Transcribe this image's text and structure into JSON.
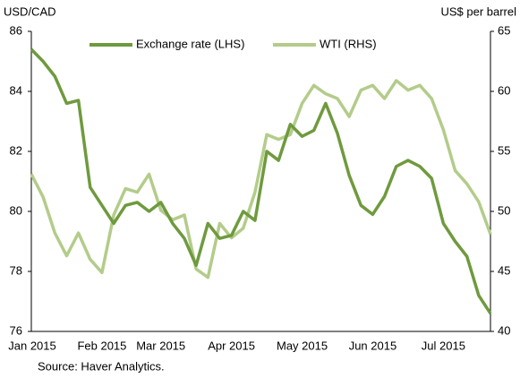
{
  "chart_data": {
    "type": "line",
    "y_label": "USD/CAD",
    "y2_label": "US$ per barrel",
    "source": "Source: Haver Analytics.",
    "categories": [
      "Jan 2015",
      null,
      null,
      null,
      null,
      null,
      "Feb 2015",
      null,
      null,
      null,
      null,
      "Mar 2015",
      null,
      null,
      null,
      null,
      null,
      "Apr 2015",
      null,
      null,
      null,
      null,
      null,
      "May 2015",
      null,
      null,
      null,
      null,
      null,
      "Jun 2015",
      null,
      null,
      null,
      null,
      null,
      "Jul 2015",
      null,
      null,
      null,
      null
    ],
    "series": [
      {
        "name": "Exchange rate (LHS)",
        "color": "#6f9a3e",
        "axis": "y",
        "values": [
          85.4,
          85.0,
          84.5,
          83.6,
          83.7,
          80.8,
          80.2,
          79.6,
          80.2,
          80.3,
          80.0,
          80.3,
          79.6,
          79.1,
          78.2,
          79.6,
          79.1,
          79.2,
          80.0,
          79.7,
          82.0,
          81.7,
          82.9,
          82.5,
          82.7,
          83.6,
          82.6,
          81.2,
          80.2,
          79.9,
          80.5,
          81.5,
          81.7,
          81.5,
          81.1,
          79.6,
          79.0,
          78.5,
          77.2,
          76.6
        ]
      },
      {
        "name": "WTI (RHS)",
        "color": "#b3cc8a",
        "axis": "y2",
        "values": [
          53.1,
          51.2,
          48.2,
          46.3,
          48.2,
          46.0,
          44.9,
          49.7,
          51.9,
          51.6,
          53.1,
          50.1,
          49.3,
          49.7,
          45.2,
          44.5,
          49.0,
          47.8,
          48.6,
          51.6,
          56.4,
          56.0,
          56.4,
          59.0,
          60.5,
          59.8,
          59.4,
          57.9,
          60.1,
          60.5,
          59.4,
          60.9,
          60.1,
          60.5,
          59.4,
          56.8,
          53.4,
          52.3,
          50.8,
          48.1
        ]
      }
    ],
    "ylim": [
      76,
      86
    ],
    "yticks": [
      76,
      78,
      80,
      82,
      84,
      86
    ],
    "y2lim": [
      40,
      65
    ],
    "y2ticks": [
      40,
      45,
      50,
      55,
      60,
      65
    ],
    "legend": "top"
  }
}
